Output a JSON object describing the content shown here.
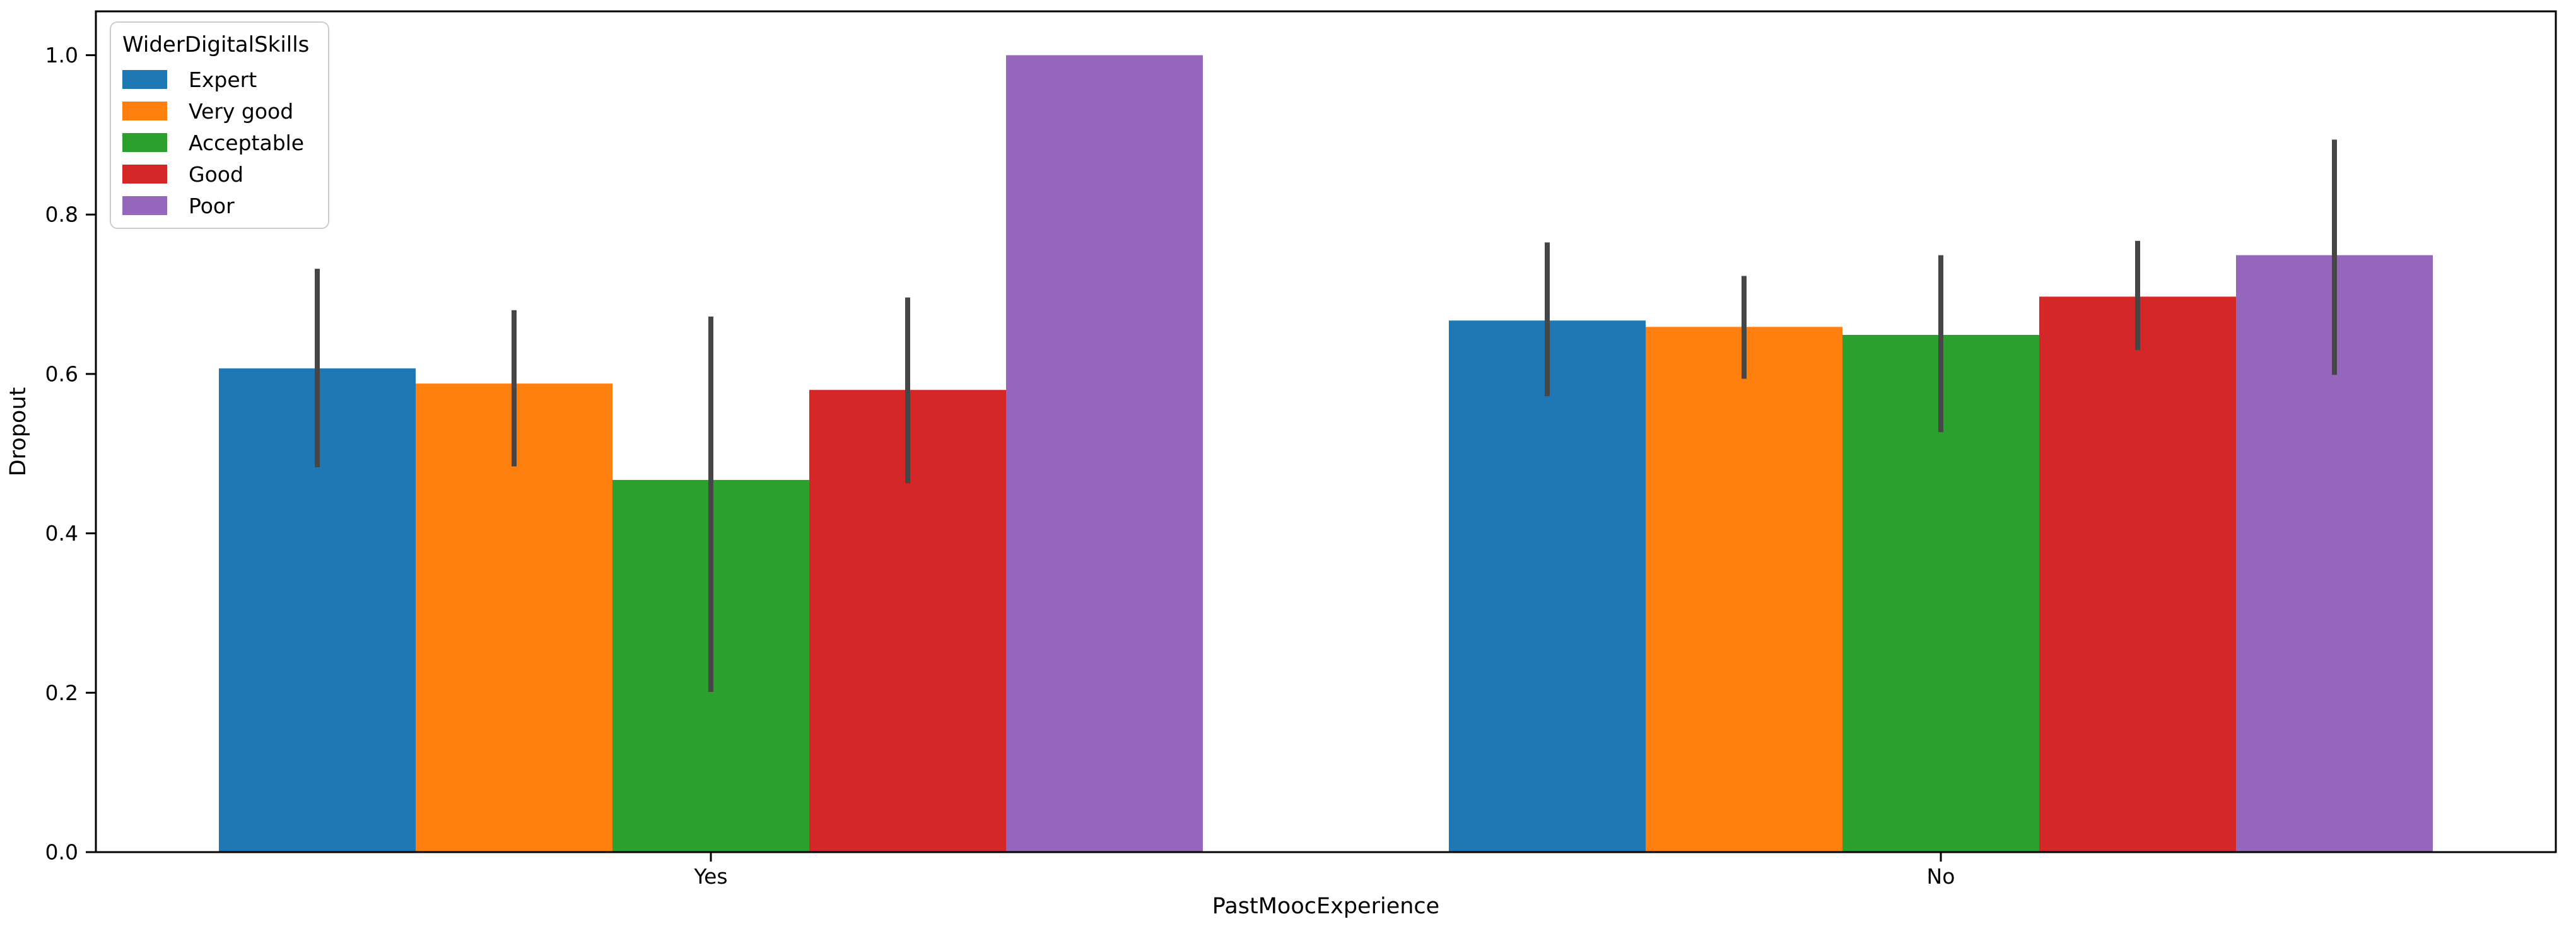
{
  "figure": {
    "background_color": "#ffffff",
    "axis_color": "#000000"
  },
  "chart_data": {
    "type": "bar",
    "title": "",
    "xlabel": "PastMoocExperience",
    "ylabel": "Dropout",
    "categories": [
      "Yes",
      "No"
    ],
    "legend": {
      "title": "WiderDigitalSkills",
      "position": "upper left"
    },
    "series": [
      {
        "name": "Expert",
        "color": "#1f77b4",
        "values": [
          0.607,
          0.667
        ],
        "err_low": [
          0.483,
          0.572
        ],
        "err_high": [
          0.732,
          0.765
        ]
      },
      {
        "name": "Very good",
        "color": "#ff7f0e",
        "values": [
          0.588,
          0.659
        ],
        "err_low": [
          0.484,
          0.594
        ],
        "err_high": [
          0.68,
          0.723
        ]
      },
      {
        "name": "Acceptable",
        "color": "#2ca02c",
        "values": [
          0.467,
          0.649
        ],
        "err_low": [
          0.201,
          0.527
        ],
        "err_high": [
          0.672,
          0.749
        ]
      },
      {
        "name": "Good",
        "color": "#d62728",
        "values": [
          0.58,
          0.697
        ],
        "err_low": [
          0.463,
          0.63
        ],
        "err_high": [
          0.696,
          0.767
        ]
      },
      {
        "name": "Poor",
        "color": "#9467bd",
        "values": [
          1.0,
          0.749
        ],
        "err_low": [
          null,
          0.599
        ],
        "err_high": [
          null,
          0.894
        ]
      }
    ],
    "yticks": [
      0.0,
      0.2,
      0.4,
      0.6,
      0.8,
      1.0
    ],
    "ytick_labels": [
      "0.0",
      "0.2",
      "0.4",
      "0.6",
      "0.8",
      "1.0"
    ],
    "ylim": [
      0,
      1.055
    ],
    "xlim": [
      -0.5,
      1.5
    ],
    "group_width": 0.8,
    "bar_width": 0.16,
    "error_bar_color": "#464646",
    "grid": false,
    "legend_position": "upper-left"
  }
}
